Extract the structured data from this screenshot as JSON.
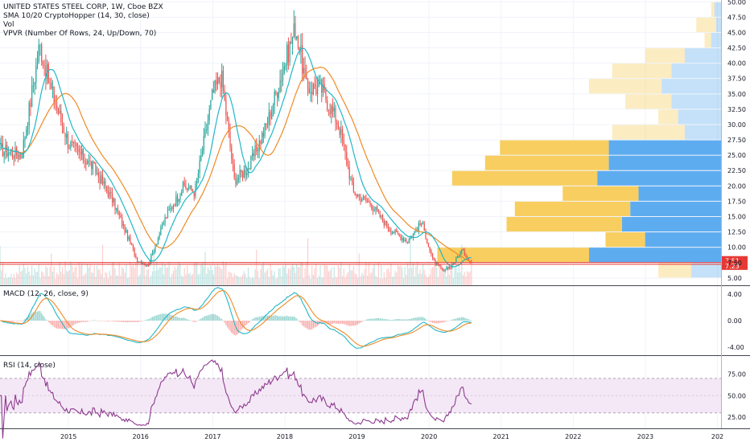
{
  "header": {
    "symbol_line": "UNITED STATES STEEL CORP, 1W, Cboe BZX",
    "indicators": [
      "SMA 10/20 CryptoHopper (14, 30, close)",
      "Vol",
      "VPVR (Number Of Rows, 24, Up/Down, 70)"
    ]
  },
  "macd_legend": "MACD (12, 26, close, 9)",
  "rsi_legend": "RSI (14, close)",
  "colors": {
    "up": "#26a69a",
    "down": "#ef5350",
    "fast_ma": "#22b7c7",
    "slow_ma": "#f08a24",
    "vp_up": "#55a8ef",
    "vp_down": "#f7c94f",
    "hline": "#e53935",
    "rsi": "#8e3a8f",
    "rsi_band": "#f3e5f5"
  },
  "chart_data": [
    {
      "type": "candlestick",
      "title": "UNITED STATES STEEL CORP, 1W, Cboe BZX",
      "x_ticks": [
        "2015",
        "2016",
        "2017",
        "2018",
        "2019",
        "2020",
        "2021",
        "2022",
        "2023",
        "202"
      ],
      "x_tick_years": [
        2015,
        2016,
        2017,
        2018,
        2019,
        2020,
        2021,
        2022,
        2023,
        2024
      ],
      "xlim_years": [
        2014.05,
        2024.05
      ],
      "y_ticks": [
        "5.00",
        "7.50",
        "10.00",
        "12.50",
        "15.00",
        "17.50",
        "20.00",
        "22.50",
        "25.00",
        "27.50",
        "30.00",
        "32.50",
        "35.00",
        "37.50",
        "40.00",
        "42.50",
        "45.00",
        "47.50",
        "50.00"
      ],
      "ylim": [
        3.8,
        50.3
      ],
      "price_anchors_year": [
        2014.05,
        2014.35,
        2014.6,
        2014.75,
        2015.0,
        2015.35,
        2015.6,
        2015.95,
        2016.1,
        2016.35,
        2016.6,
        2016.75,
        2017.0,
        2017.12,
        2017.3,
        2017.5,
        2017.75,
        2017.95,
        2018.15,
        2018.3,
        2018.5,
        2018.75,
        2018.95,
        2019.2,
        2019.45,
        2019.7,
        2019.9,
        2020.05,
        2020.2,
        2020.35,
        2020.45,
        2020.6
      ],
      "price_anchors": [
        26.0,
        25.0,
        43.0,
        36.0,
        27.0,
        23.0,
        18.0,
        8.0,
        7.0,
        15.0,
        20.0,
        19.0,
        35.0,
        38.0,
        21.0,
        23.0,
        30.0,
        38.0,
        46.0,
        36.0,
        36.0,
        30.0,
        19.0,
        17.0,
        13.0,
        11.0,
        14.0,
        8.0,
        6.0,
        7.5,
        9.5,
        7.4
      ],
      "moving_averages": [
        {
          "name": "SMA 10/20 CryptoHopper (14, 30, close)",
          "periods": [
            14,
            30
          ]
        }
      ],
      "volume_profile": {
        "label": "VPVR (Number Of Rows, 24, Up/Down, 70)",
        "rows_price": [
          5.0,
          7.5,
          10.0,
          12.5,
          15.0,
          17.5,
          20.0,
          22.5,
          25.0,
          27.5,
          30.0,
          32.5,
          35.0,
          37.5,
          40.0,
          42.5,
          45.0,
          47.5
        ],
        "up": [
          18,
          80,
          46,
          60,
          55,
          50,
          75,
          68,
          68,
          22,
          26,
          30,
          36,
          30,
          22,
          6,
          3,
          4
        ],
        "down": [
          20,
          92,
          24,
          70,
          70,
          46,
          88,
          75,
          66,
          44,
          12,
          28,
          44,
          36,
          24,
          4,
          12,
          2
        ]
      },
      "horizontal_lines": [
        7.51,
        7.23
      ],
      "price_labels": [
        "7.51",
        "7.23"
      ]
    },
    {
      "type": "line",
      "title": "MACD (12, 26, close, 9)",
      "y_ticks": [
        "4.00",
        "0.00",
        "-4.00"
      ],
      "ylim": [
        -5.2,
        5.2
      ]
    },
    {
      "type": "line",
      "title": "RSI (14, close)",
      "y_ticks": [
        "75.00",
        "50.00",
        "25.00"
      ],
      "ylim": [
        12,
        96
      ],
      "bands": [
        70,
        30
      ]
    }
  ]
}
